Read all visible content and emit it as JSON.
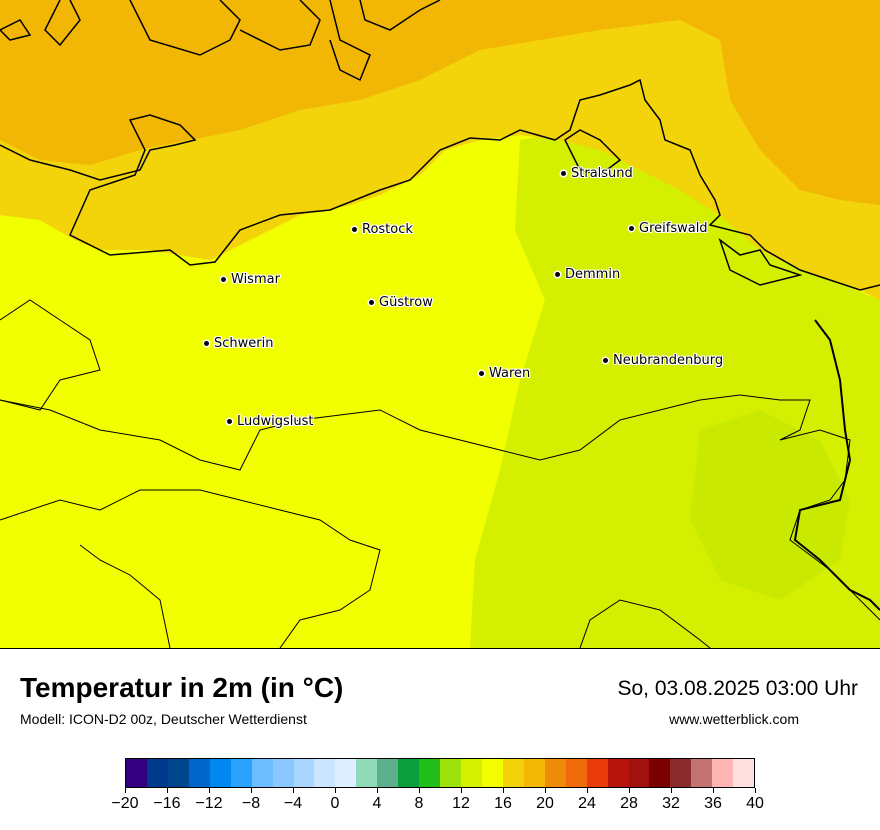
{
  "map": {
    "colors": {
      "sea_orange": "#f2b705",
      "sea_light": "#f3d40a",
      "land_yellow": "#f2ff00",
      "land_green": "#d4f000",
      "land_bright_green": "#b8e400",
      "coastline": "#000000"
    },
    "cities": [
      {
        "name": "Stralsund"
      },
      {
        "name": "Rostock"
      },
      {
        "name": "Greifswald"
      },
      {
        "name": "Wismar"
      },
      {
        "name": "Demmin"
      },
      {
        "name": "Güstrow"
      },
      {
        "name": "Schwerin"
      },
      {
        "name": "Neubrandenburg"
      },
      {
        "name": "Waren"
      },
      {
        "name": "Ludwigslust"
      }
    ]
  },
  "footer": {
    "title": "Temperatur in 2m (in °C)",
    "model": "Modell: ICON-D2 00z, Deutscher Wetterdienst",
    "datetime": "So, 03.08.2025 03:00 Uhr",
    "website": "www.wetterblick.com"
  },
  "legend": {
    "colors": [
      "#330080",
      "#003a8c",
      "#00468f",
      "#0066c9",
      "#0088ee",
      "#2aa3ff",
      "#6ebdff",
      "#8cc8ff",
      "#a9d6ff",
      "#c9e5ff",
      "#dceeff",
      "#8fdbb8",
      "#5caf8a",
      "#0c9e3c",
      "#22be1a",
      "#9de00a",
      "#d4f000",
      "#f2ff00",
      "#f2d20a",
      "#f2b705",
      "#f08a0a",
      "#ef6a08",
      "#e93a0a",
      "#b8140e",
      "#a3110f",
      "#7b0000",
      "#8a2c2c",
      "#c47373",
      "#ffb5b5",
      "#ffe0e0"
    ],
    "tick_labels": [
      "−20",
      "−16",
      "−12",
      "−8",
      "−4",
      "0",
      "4",
      "8",
      "12",
      "16",
      "20",
      "24",
      "28",
      "32",
      "36",
      "40"
    ]
  }
}
